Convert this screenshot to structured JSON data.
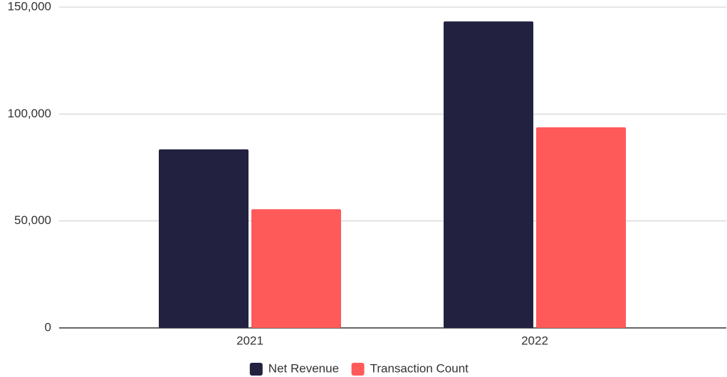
{
  "chart_data": {
    "type": "bar",
    "categories": [
      "2021",
      "2022"
    ],
    "series": [
      {
        "name": "Net Revenue",
        "color": "#222240",
        "values": [
          83500,
          143300
        ]
      },
      {
        "name": "Transaction Count",
        "color": "#ff5a5a",
        "values": [
          55500,
          93800
        ]
      }
    ],
    "ylim": [
      0,
      150000
    ],
    "yticks": [
      0,
      {
        "value": 50000,
        "label": "50,000"
      },
      {
        "value": 100000,
        "label": "100,000"
      },
      {
        "value": 150000,
        "label": "150,000"
      }
    ],
    "grid": true,
    "legend": "bottom"
  }
}
